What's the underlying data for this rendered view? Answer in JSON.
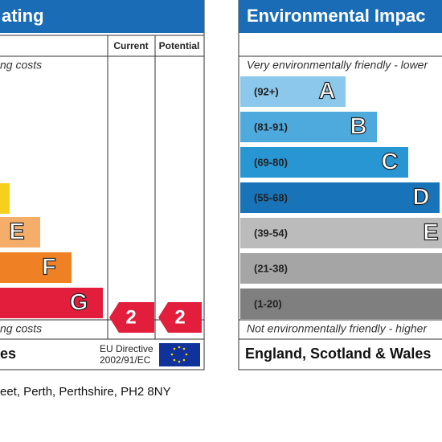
{
  "energy_panel": {
    "title": "ating",
    "top_note": "ng costs",
    "headers": [
      "Current",
      "Potential"
    ],
    "bands": [
      "E",
      "F",
      "G"
    ],
    "current": "2",
    "potential": "2",
    "bottom_note": "ng costs",
    "footer_left": "es",
    "directive": [
      "EU Directive",
      "2002/91/EC"
    ]
  },
  "environment_panel": {
    "title": "Environmental Impac",
    "top_note": "Very environmentally friendly - lower",
    "bands": [
      {
        "range": "(92+)",
        "letter": "A"
      },
      {
        "range": "(81-91)",
        "letter": "B"
      },
      {
        "range": "(69-80)",
        "letter": "C"
      },
      {
        "range": "(55-68)",
        "letter": "D"
      },
      {
        "range": "(39-54)",
        "letter": "E"
      },
      {
        "range": "(21-38)"
      },
      {
        "range": "(1-20)"
      }
    ],
    "bottom_note": "Not environmentally friendly - higher",
    "footer": "England, Scotland & Wales"
  },
  "address": "eet, Perth, Perthshire, PH2 8NY"
}
